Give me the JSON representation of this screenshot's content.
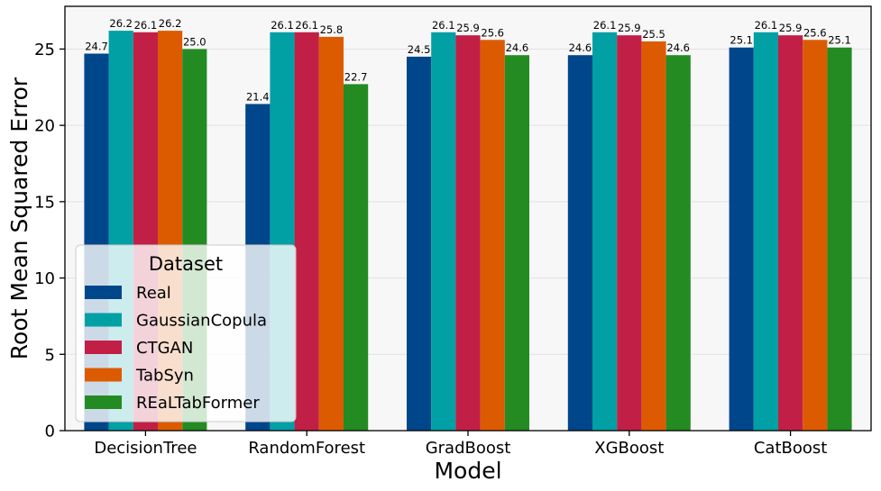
{
  "chart_data": {
    "type": "bar",
    "title": "",
    "xlabel": "Model",
    "ylabel": "Root Mean Squared Error",
    "categories": [
      "DecisionTree",
      "RandomForest",
      "GradBoost",
      "XGBoost",
      "CatBoost"
    ],
    "series": [
      {
        "name": "Real",
        "color": "#00468b",
        "values": [
          24.7,
          21.4,
          24.5,
          24.6,
          25.1
        ],
        "labels": [
          "24.7",
          "21.4",
          "24.5",
          "24.6",
          "25.1"
        ]
      },
      {
        "name": "GaussianCopula",
        "color": "#00a0a4",
        "values": [
          26.2,
          26.1,
          26.1,
          26.1,
          26.1
        ],
        "labels": [
          "26.2",
          "26.1",
          "26.1",
          "26.1",
          "26.1"
        ]
      },
      {
        "name": "CTGAN",
        "color": "#c11f45",
        "values": [
          26.1,
          26.1,
          25.9,
          25.9,
          25.9
        ],
        "labels": [
          "26.1",
          "26.1",
          "25.9",
          "25.9",
          "25.9"
        ]
      },
      {
        "name": "TabSyn",
        "color": "#dd5b00",
        "values": [
          26.2,
          25.8,
          25.6,
          25.5,
          25.6
        ],
        "labels": [
          "26.2",
          "25.8",
          "25.6",
          "25.5",
          "25.6"
        ]
      },
      {
        "name": "REaLTabFormer",
        "color": "#238b22",
        "values": [
          25.0,
          22.7,
          24.6,
          24.6,
          25.1
        ],
        "labels": [
          "25.0",
          "22.7",
          "24.6",
          "24.6",
          "25.1"
        ]
      }
    ],
    "ylim": [
      0,
      27.8
    ],
    "yticks": [
      0,
      5,
      10,
      15,
      20,
      25
    ],
    "grid": true,
    "legend": {
      "title": "Dataset",
      "placement": "lower-left"
    },
    "plot_background": "#f7f7f7"
  }
}
